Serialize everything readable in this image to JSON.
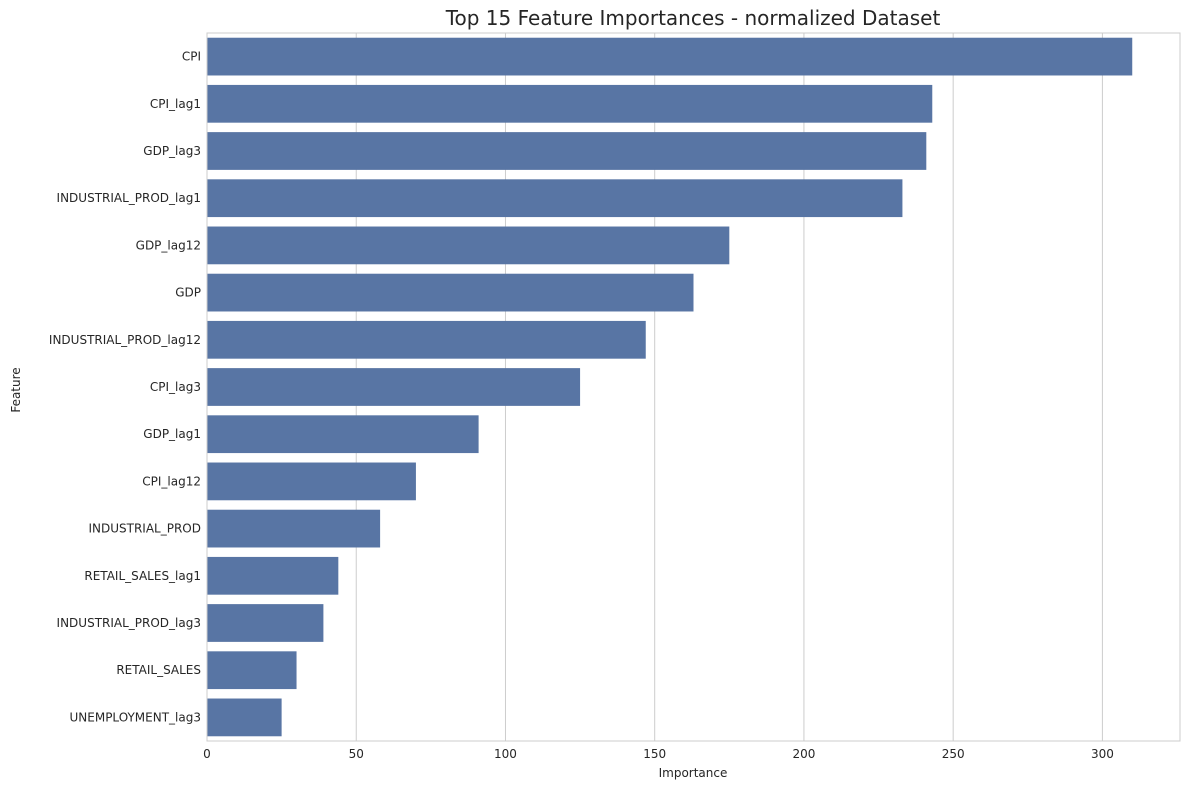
{
  "chart_data": {
    "type": "bar",
    "orientation": "horizontal",
    "title": "Top 15 Feature Importances - normalized Dataset",
    "xlabel": "Importance",
    "ylabel": "Feature",
    "xlim": [
      0,
      326
    ],
    "xticks": [
      0,
      50,
      100,
      150,
      200,
      250,
      300
    ],
    "grid": true,
    "bar_color": "#5875a4",
    "categories": [
      "CPI",
      "CPI_lag1",
      "GDP_lag3",
      "INDUSTRIAL_PROD_lag1",
      "GDP_lag12",
      "GDP",
      "INDUSTRIAL_PROD_lag12",
      "CPI_lag3",
      "GDP_lag1",
      "CPI_lag12",
      "INDUSTRIAL_PROD",
      "RETAIL_SALES_lag1",
      "INDUSTRIAL_PROD_lag3",
      "RETAIL_SALES",
      "UNEMPLOYMENT_lag3"
    ],
    "values": [
      310,
      243,
      241,
      233,
      175,
      163,
      147,
      125,
      91,
      70,
      58,
      44,
      39,
      30,
      25
    ]
  }
}
